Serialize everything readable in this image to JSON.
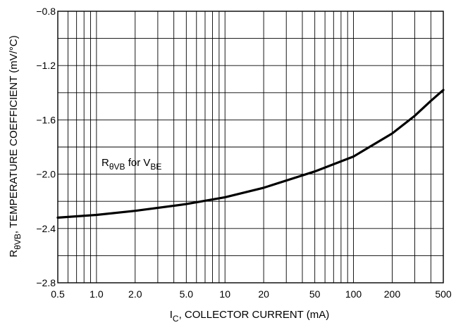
{
  "chart_data": {
    "type": "line",
    "x_scale": "log",
    "grid": true,
    "xlim": [
      0.5,
      500
    ],
    "ylim": [
      -2.8,
      -0.8
    ],
    "x_ticks": [
      0.5,
      1.0,
      2.0,
      5.0,
      10,
      20,
      50,
      100,
      200,
      500
    ],
    "x_tick_labels": [
      "0.5",
      "1.0",
      "2.0",
      "5.0",
      "10",
      "20",
      "50",
      "100",
      "200",
      "500"
    ],
    "y_ticks": [
      -0.8,
      -1.2,
      -1.6,
      -2.0,
      -2.4,
      -2.8
    ],
    "y_tick_labels": [
      "−0.8",
      "−1.2",
      "−1.6",
      "−2.0",
      "−2.4",
      "−2.8"
    ],
    "x_minor_grid": [
      0.6,
      0.7,
      0.8,
      0.9,
      3,
      4,
      6,
      7,
      8,
      9,
      30,
      40,
      60,
      70,
      80,
      90,
      300,
      400
    ],
    "y_minor_grid": [
      -1.0,
      -1.4,
      -1.8,
      -2.2,
      -2.6
    ],
    "xlabel": {
      "main": "I",
      "sub": "C",
      "rest": ", COLLECTOR CURRENT (mA)"
    },
    "ylabel": {
      "main": "R",
      "sub": "θVB",
      "rest": ", TEMPERATURE COEFFICIENT (mV/°C)"
    },
    "annotation": {
      "main": "R",
      "sub": "θVB",
      "mid": " for V",
      "sub2": "BE"
    },
    "series": [
      {
        "name": "RθVB for VBE",
        "color": "#000000",
        "x": [
          0.5,
          1.0,
          2.0,
          5.0,
          10,
          20,
          50,
          100,
          200,
          300,
          400,
          500
        ],
        "y": [
          -2.32,
          -2.3,
          -2.27,
          -2.22,
          -2.17,
          -2.1,
          -1.98,
          -1.87,
          -1.7,
          -1.57,
          -1.46,
          -1.38
        ]
      }
    ]
  }
}
